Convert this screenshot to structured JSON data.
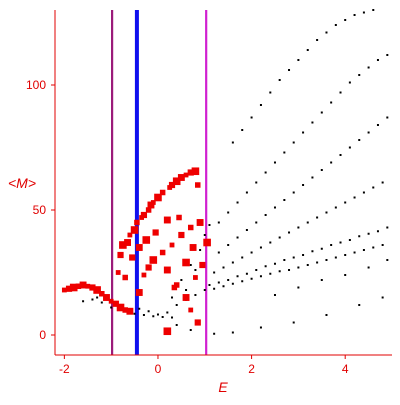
{
  "chart_data": {
    "type": "scatter",
    "title": "",
    "xlabel": "E",
    "ylabel": "<M>",
    "xlim": [
      -2.2,
      5.0
    ],
    "ylim": [
      -8,
      130
    ],
    "grid": false,
    "x_ticks": [
      {
        "value": -2,
        "label": "-2"
      },
      {
        "value": 0,
        "label": "0"
      },
      {
        "value": 2,
        "label": "2"
      },
      {
        "value": 4,
        "label": "4"
      }
    ],
    "y_ticks": [
      {
        "value": 0,
        "label": "0"
      },
      {
        "value": 50,
        "label": "50"
      },
      {
        "value": 100,
        "label": "100"
      }
    ],
    "vertical_lines": [
      {
        "x": -0.98,
        "color": "#9b1b7a"
      },
      {
        "x": -0.45,
        "color": "#1010ee"
      },
      {
        "x": 1.03,
        "color": "#d020d0"
      }
    ],
    "series": [
      {
        "color": "#000000",
        "points": [
          [
            -1.6,
            13.5
          ],
          [
            -1.4,
            14.2
          ],
          [
            -1.3,
            15.0
          ],
          [
            -1.2,
            13.0
          ],
          [
            -1.0,
            11.0
          ],
          [
            -0.8,
            10.0
          ],
          [
            -0.6,
            9.0
          ],
          [
            -0.5,
            8.5
          ],
          [
            -0.3,
            8.0
          ],
          [
            -0.1,
            7.5
          ],
          [
            0.1,
            7.2
          ],
          [
            0.3,
            7.0
          ],
          [
            -0.4,
            10.5
          ],
          [
            -0.2,
            9.5
          ],
          [
            0.0,
            8.2
          ],
          [
            0.2,
            9.0
          ],
          [
            0.4,
            12.0
          ],
          [
            0.6,
            14.0
          ],
          [
            0.8,
            16.0
          ],
          [
            1.0,
            18.0
          ],
          [
            1.2,
            18.5
          ],
          [
            1.4,
            19.5
          ],
          [
            1.6,
            20.5
          ],
          [
            1.8,
            21.5
          ],
          [
            2.0,
            22.5
          ],
          [
            2.2,
            23.5
          ],
          [
            2.4,
            24.5
          ],
          [
            2.6,
            25.5
          ],
          [
            2.8,
            26.0
          ],
          [
            3.0,
            27.0
          ],
          [
            3.2,
            28.0
          ],
          [
            3.4,
            29.0
          ],
          [
            3.6,
            30.0
          ],
          [
            3.8,
            31.0
          ],
          [
            4.0,
            32.0
          ],
          [
            4.2,
            33.0
          ],
          [
            4.4,
            34.0
          ],
          [
            4.6,
            35.0
          ],
          [
            4.8,
            36.0
          ],
          [
            1.1,
            20.0
          ],
          [
            1.3,
            21.0
          ],
          [
            1.5,
            22.0
          ],
          [
            1.7,
            23.5
          ],
          [
            1.9,
            24.5
          ],
          [
            2.1,
            26.0
          ],
          [
            2.3,
            27.5
          ],
          [
            2.5,
            28.5
          ],
          [
            2.7,
            30.0
          ],
          [
            2.9,
            31.0
          ],
          [
            3.1,
            32.0
          ],
          [
            3.3,
            33.5
          ],
          [
            3.5,
            34.5
          ],
          [
            3.7,
            36.0
          ],
          [
            3.9,
            37.0
          ],
          [
            4.1,
            38.0
          ],
          [
            4.3,
            39.5
          ],
          [
            4.5,
            40.5
          ],
          [
            4.7,
            41.5
          ],
          [
            4.9,
            43.0
          ],
          [
            1.2,
            25.0
          ],
          [
            1.4,
            27.0
          ],
          [
            1.6,
            29.0
          ],
          [
            1.8,
            31.0
          ],
          [
            2.0,
            33.0
          ],
          [
            2.2,
            35.0
          ],
          [
            2.4,
            37.0
          ],
          [
            2.6,
            39.0
          ],
          [
            2.8,
            41.0
          ],
          [
            3.0,
            43.0
          ],
          [
            3.2,
            45.0
          ],
          [
            3.4,
            47.0
          ],
          [
            3.6,
            49.0
          ],
          [
            3.8,
            51.0
          ],
          [
            4.0,
            53.0
          ],
          [
            4.2,
            55.0
          ],
          [
            4.4,
            57.0
          ],
          [
            4.6,
            59.0
          ],
          [
            4.8,
            61.0
          ],
          [
            1.3,
            33.0
          ],
          [
            1.5,
            36.0
          ],
          [
            1.7,
            39.0
          ],
          [
            1.9,
            42.0
          ],
          [
            2.1,
            45.0
          ],
          [
            2.3,
            48.0
          ],
          [
            2.5,
            51.0
          ],
          [
            2.7,
            54.0
          ],
          [
            2.9,
            57.0
          ],
          [
            3.1,
            60.0
          ],
          [
            3.3,
            63.0
          ],
          [
            3.5,
            66.0
          ],
          [
            3.7,
            69.0
          ],
          [
            3.9,
            72.0
          ],
          [
            4.1,
            75.0
          ],
          [
            4.3,
            78.0
          ],
          [
            4.5,
            81.0
          ],
          [
            4.7,
            84.0
          ],
          [
            4.9,
            87.0
          ],
          [
            1.3,
            45.0
          ],
          [
            1.5,
            49.0
          ],
          [
            1.7,
            53.0
          ],
          [
            1.9,
            57.0
          ],
          [
            2.1,
            61.0
          ],
          [
            2.3,
            65.0
          ],
          [
            2.5,
            69.0
          ],
          [
            2.7,
            73.0
          ],
          [
            2.9,
            77.0
          ],
          [
            3.1,
            81.0
          ],
          [
            3.3,
            85.0
          ],
          [
            3.5,
            89.0
          ],
          [
            3.7,
            93.0
          ],
          [
            3.9,
            97.0
          ],
          [
            4.1,
            101.0
          ],
          [
            4.3,
            104.0
          ],
          [
            4.5,
            107.0
          ],
          [
            4.7,
            110.0
          ],
          [
            4.9,
            112.0
          ],
          [
            1.6,
            77.0
          ],
          [
            1.8,
            82.0
          ],
          [
            2.0,
            87.0
          ],
          [
            2.2,
            92.0
          ],
          [
            2.4,
            97.0
          ],
          [
            2.6,
            102.0
          ],
          [
            2.8,
            106.0
          ],
          [
            3.0,
            110.0
          ],
          [
            3.2,
            114.0
          ],
          [
            3.4,
            118.0
          ],
          [
            3.6,
            121.0
          ],
          [
            3.8,
            124.0
          ],
          [
            4.0,
            126.0
          ],
          [
            4.2,
            128.0
          ],
          [
            4.4,
            129.0
          ],
          [
            4.6,
            130.0
          ],
          [
            0.3,
            15.0
          ],
          [
            0.5,
            22.0
          ],
          [
            0.6,
            18.0
          ],
          [
            0.7,
            28.0
          ],
          [
            0.8,
            26.0
          ],
          [
            0.9,
            34.0
          ],
          [
            1.0,
            40.0
          ],
          [
            1.1,
            44.0
          ],
          [
            0.4,
            4.0
          ],
          [
            0.7,
            2.0
          ],
          [
            1.2,
            0.5
          ],
          [
            1.6,
            1.0
          ],
          [
            2.2,
            3.0
          ],
          [
            2.9,
            5.0
          ],
          [
            3.6,
            8.0
          ],
          [
            4.3,
            12.0
          ],
          [
            4.8,
            15.0
          ],
          [
            2.5,
            16.0
          ],
          [
            3.0,
            19.0
          ],
          [
            3.5,
            22.0
          ],
          [
            4.0,
            24.0
          ],
          [
            4.5,
            27.0
          ],
          [
            4.9,
            30.0
          ]
        ]
      },
      {
        "color": "#ee0000",
        "points": [
          [
            -2.0,
            18.0
          ],
          [
            -1.9,
            18.5
          ],
          [
            -1.8,
            19.0
          ],
          [
            -1.7,
            19.5
          ],
          [
            -1.6,
            20.0
          ],
          [
            -1.5,
            19.5
          ],
          [
            -1.4,
            19.0
          ],
          [
            -1.3,
            18.0
          ],
          [
            -1.2,
            16.5
          ],
          [
            -1.1,
            15.0
          ],
          [
            -1.0,
            13.5
          ],
          [
            -0.9,
            12.5
          ],
          [
            -0.8,
            11.0
          ],
          [
            -0.7,
            10.0
          ],
          [
            -0.6,
            9.5
          ],
          [
            -0.85,
            25.0
          ],
          [
            -0.8,
            32.0
          ],
          [
            -0.75,
            36.0
          ],
          [
            -0.7,
            23.0
          ],
          [
            -0.65,
            37.0
          ],
          [
            -0.6,
            40.0
          ],
          [
            -0.55,
            31.0
          ],
          [
            -0.5,
            42.0
          ],
          [
            -0.45,
            45.0
          ],
          [
            -0.4,
            35.0
          ],
          [
            -0.35,
            47.0
          ],
          [
            -0.3,
            48.0
          ],
          [
            -0.25,
            38.0
          ],
          [
            -0.2,
            50.0
          ],
          [
            -0.15,
            52.0
          ],
          [
            -0.1,
            53.0
          ],
          [
            -0.05,
            41.0
          ],
          [
            0.0,
            55.0
          ],
          [
            0.1,
            57.0
          ],
          [
            0.2,
            46.0
          ],
          [
            0.25,
            59.0
          ],
          [
            0.3,
            60.0
          ],
          [
            0.4,
            61.5
          ],
          [
            0.45,
            47.0
          ],
          [
            0.5,
            63.0
          ],
          [
            0.6,
            64.0
          ],
          [
            0.7,
            65.0
          ],
          [
            0.8,
            65.5
          ],
          [
            0.85,
            60.0
          ],
          [
            0.9,
            45.0
          ],
          [
            -0.3,
            24.0
          ],
          [
            -0.2,
            27.0
          ],
          [
            -0.1,
            30.0
          ],
          [
            0.1,
            33.0
          ],
          [
            0.2,
            26.0
          ],
          [
            0.3,
            36.0
          ],
          [
            0.5,
            40.0
          ],
          [
            0.6,
            29.0
          ],
          [
            0.7,
            43.0
          ],
          [
            0.75,
            35.0
          ],
          [
            0.8,
            23.0
          ],
          [
            0.95,
            28.0
          ],
          [
            1.05,
            37.0
          ],
          [
            0.4,
            20.0
          ],
          [
            0.6,
            15.0
          ],
          [
            0.7,
            10.0
          ],
          [
            0.85,
            5.0
          ],
          [
            0.2,
            1.5
          ],
          [
            0.35,
            19.0
          ],
          [
            -0.4,
            17.0
          ]
        ]
      }
    ]
  }
}
